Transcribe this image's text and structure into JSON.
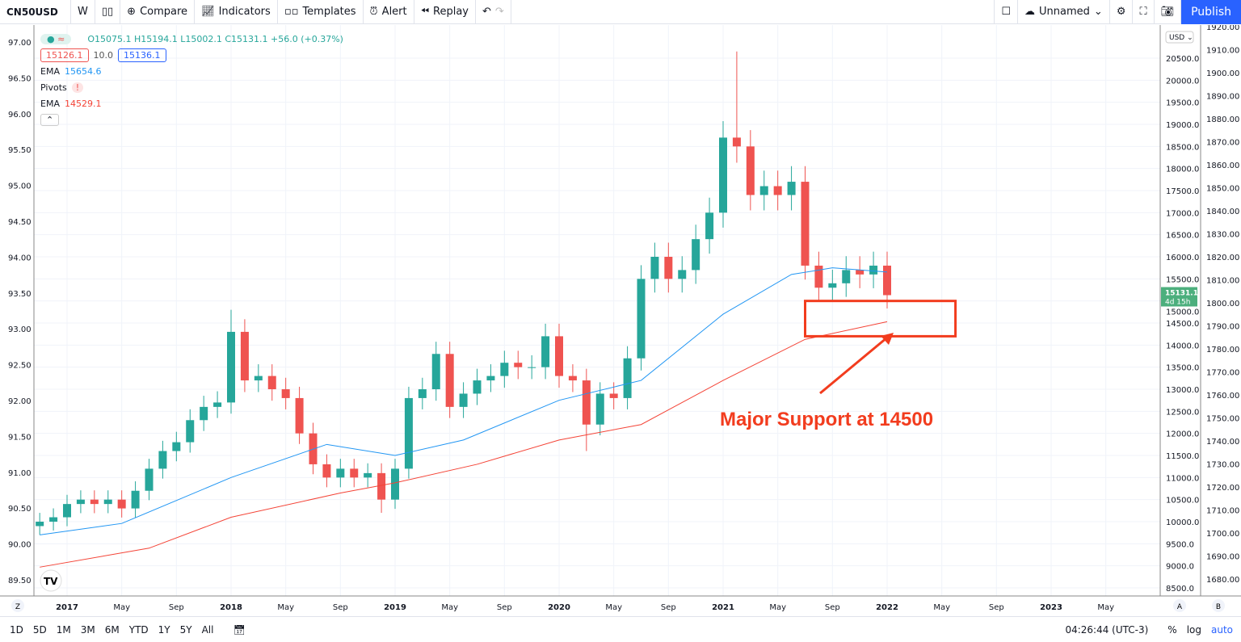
{
  "toolbar": {
    "symbol": "CN50USD",
    "interval": "W",
    "compare": "Compare",
    "indicators": "Indicators",
    "templates": "Templates",
    "alert": "Alert",
    "replay": "Replay",
    "layout_name": "Unnamed",
    "publish": "Publish"
  },
  "legend": {
    "ohlc": "O15075.1 H15194.1 L15002.1 C15131.1 +56.0 (+0.37%)",
    "bid": "15126.1",
    "spread": "10.0",
    "ask": "15136.1",
    "ema1_label": "EMA",
    "ema1_value": "15654.6",
    "pivots": "Pivots",
    "pivots_warn": "!",
    "ema2_label": "EMA",
    "ema2_value": "14529.1"
  },
  "colors": {
    "up": "#26a69a",
    "down": "#ef5350",
    "ema_fast": "#2196f3",
    "ema_slow": "#f44336",
    "annotation": "#f23c1e",
    "accent": "#2962ff"
  },
  "price_label": {
    "value": "15131.1",
    "countdown": "4d 15h"
  },
  "currency": "USD",
  "annotation": "Major Support at 14500",
  "bottom": {
    "ranges": [
      "1D",
      "5D",
      "1M",
      "3M",
      "6M",
      "YTD",
      "1Y",
      "5Y",
      "All"
    ],
    "time": "04:26:44 (UTC-3)",
    "pct": "%",
    "log": "log",
    "auto": "auto"
  },
  "chart_data": {
    "type": "candlestick",
    "interval": "W",
    "ylim": [
      8500,
      20500
    ],
    "y_ticks": [
      8500,
      9000,
      9500,
      10000,
      10500,
      11000,
      11500,
      12000,
      12500,
      13000,
      13500,
      14000,
      14500,
      15000,
      15500,
      16000,
      16500,
      17000,
      17500,
      18000,
      18500,
      19000,
      19500,
      20000,
      20500
    ],
    "left_axis_ticks": [
      "89.50",
      "90.00",
      "90.50",
      "91.00",
      "91.50",
      "92.00",
      "92.50",
      "93.00",
      "93.50",
      "94.00",
      "94.50",
      "95.00",
      "95.50",
      "96.00",
      "96.50",
      "97.00"
    ],
    "right_axis_ticks": [
      "1680.00",
      "1690.00",
      "1700.00",
      "1710.00",
      "1720.00",
      "1730.00",
      "1740.00",
      "1750.00",
      "1760.00",
      "1770.00",
      "1780.00",
      "1790.00",
      "1800.00",
      "1810.00",
      "1820.00",
      "1830.00",
      "1840.00",
      "1850.00",
      "1860.00",
      "1870.00",
      "1880.00",
      "1890.00",
      "1900.00",
      "1910.00",
      "1920.00"
    ],
    "x_ticks": [
      "2017",
      "May",
      "Sep",
      "2018",
      "May",
      "Sep",
      "2019",
      "May",
      "Sep",
      "2020",
      "May",
      "Sep",
      "2021",
      "May",
      "Sep",
      "2022",
      "May",
      "Sep",
      "2023",
      "May"
    ],
    "start_month": "2016-11",
    "closes": [
      10000,
      10100,
      10400,
      10500,
      10400,
      10500,
      10300,
      10700,
      11200,
      11600,
      11800,
      12300,
      12600,
      12700,
      14300,
      13200,
      13300,
      13000,
      12800,
      12000,
      11300,
      11000,
      11200,
      11000,
      11100,
      10500,
      11200,
      12800,
      13000,
      13800,
      12600,
      12900,
      13200,
      13300,
      13600,
      13500,
      13500,
      14200,
      13300,
      13200,
      12200,
      12900,
      12800,
      13700,
      15500,
      16000,
      15500,
      15700,
      16400,
      17000,
      18700,
      18500,
      17400,
      17600,
      17400,
      17700,
      15800,
      15300,
      15400,
      15700,
      15600,
      15800,
      15131.1
    ],
    "extremes": {
      "2018-01": {
        "h": 14800
      },
      "2018-12": {
        "l": 10200
      },
      "2020-03": {
        "l": 11600
      },
      "2021-02": {
        "h": 20650
      }
    },
    "ema_fast": {
      "points": [
        [
          "2016-11",
          9700
        ],
        [
          "2017-05",
          9960
        ],
        [
          "2018-01",
          11000
        ],
        [
          "2018-08",
          11750
        ],
        [
          "2019-01",
          11500
        ],
        [
          "2019-06",
          11850
        ],
        [
          "2020-01",
          12750
        ],
        [
          "2020-07",
          13200
        ],
        [
          "2021-01",
          14700
        ],
        [
          "2021-06",
          15600
        ],
        [
          "2021-09",
          15750
        ],
        [
          "2022-01",
          15654.6
        ]
      ]
    },
    "ema_slow": {
      "points": [
        [
          "2016-11",
          8970
        ],
        [
          "2017-07",
          9400
        ],
        [
          "2018-01",
          10100
        ],
        [
          "2018-09",
          10650
        ],
        [
          "2019-01",
          10880
        ],
        [
          "2019-07",
          11300
        ],
        [
          "2020-01",
          11850
        ],
        [
          "2020-07",
          12200
        ],
        [
          "2021-01",
          13200
        ],
        [
          "2021-07",
          14130
        ],
        [
          "2022-01",
          14529.1
        ]
      ]
    },
    "support_zone": [
      14200,
      15000
    ],
    "support_zone_dates": [
      "2021-07",
      "2022-06"
    ]
  }
}
